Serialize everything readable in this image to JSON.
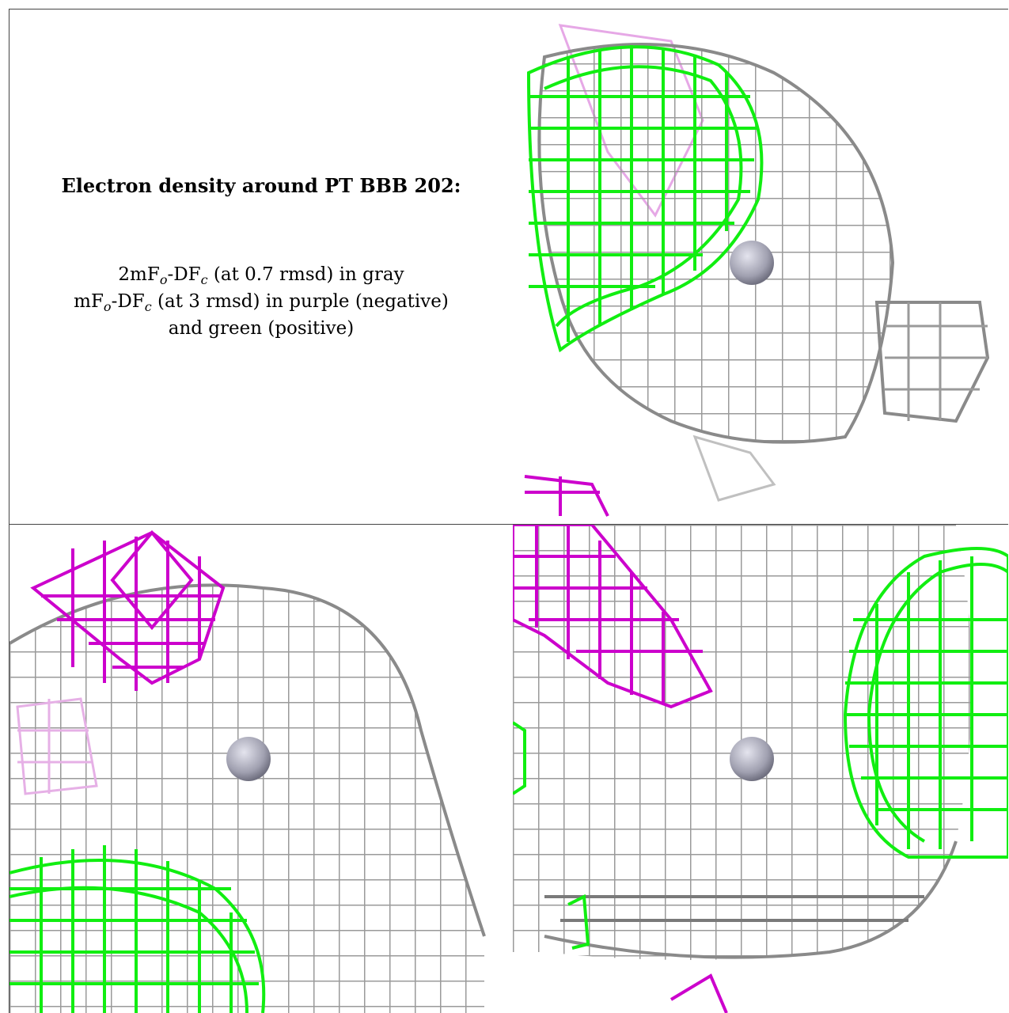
{
  "caption": {
    "title": "Electron density around PT BBB 202:",
    "map1_prefix": "2mF",
    "map1_sub1": "o",
    "map1_mid": "-DF",
    "map1_sub2": "c",
    "map1_suffix": " (at 0.7 rmsd) in gray",
    "map2_prefix": "mF",
    "map2_sub1": "o",
    "map2_mid": "-DF",
    "map2_sub2": "c",
    "map2_suffix": " (at 3 rmsd) in purple (negative)",
    "map2_cont": "and green (positive)"
  },
  "colors": {
    "gray_mesh": "#9a9a9a",
    "gray_dark": "#5a5a5a",
    "green_mesh": "#11ee11",
    "purple_mesh": "#cc00cc",
    "atom": "#a8a8b8"
  },
  "panels": [
    {
      "name": "view-top-right"
    },
    {
      "name": "view-bottom-left"
    },
    {
      "name": "view-bottom-right"
    }
  ]
}
